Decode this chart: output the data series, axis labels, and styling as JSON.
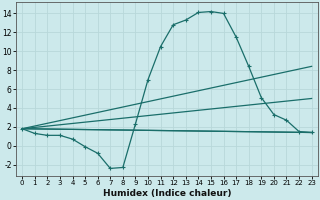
{
  "xlabel": "Humidex (Indice chaleur)",
  "xlim": [
    -0.5,
    23.5
  ],
  "ylim": [
    -3.2,
    15.2
  ],
  "xticks": [
    0,
    1,
    2,
    3,
    4,
    5,
    6,
    7,
    8,
    9,
    10,
    11,
    12,
    13,
    14,
    15,
    16,
    17,
    18,
    19,
    20,
    21,
    22,
    23
  ],
  "yticks": [
    -2,
    0,
    2,
    4,
    6,
    8,
    10,
    12,
    14
  ],
  "background_color": "#cce9eb",
  "grid_color": "#b8d8da",
  "line_color": "#1a6e6a",
  "curve_x": [
    0,
    1,
    2,
    3,
    4,
    5,
    6,
    7,
    8,
    9,
    10,
    11,
    12,
    13,
    14,
    15,
    16,
    17,
    18,
    19,
    20,
    21,
    22,
    23
  ],
  "curve_y": [
    1.8,
    1.3,
    1.1,
    1.1,
    0.7,
    -0.1,
    -0.8,
    -2.4,
    -2.3,
    2.3,
    7.0,
    10.5,
    12.8,
    13.3,
    14.1,
    14.2,
    14.0,
    11.5,
    8.4,
    5.1,
    3.3,
    2.7,
    1.5,
    1.4
  ],
  "straight_lines": [
    {
      "x0": 0,
      "y0": 1.8,
      "x1": 23,
      "y1": 1.4
    },
    {
      "x0": 0,
      "y0": 1.8,
      "x1": 23,
      "y1": 1.4
    },
    {
      "x0": 0,
      "y0": 1.8,
      "x1": 23,
      "y1": 5.0
    },
    {
      "x0": 0,
      "y0": 1.8,
      "x1": 23,
      "y1": 8.4
    }
  ]
}
